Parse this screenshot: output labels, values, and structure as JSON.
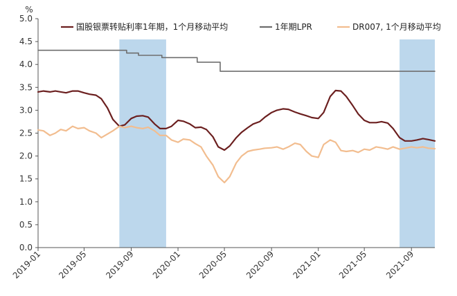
{
  "chart_data": {
    "type": "line",
    "unit": "%",
    "xlabel": "",
    "ylabel": "",
    "ylim": [
      0,
      5
    ],
    "y_ticks": [
      0.0,
      0.5,
      1.0,
      1.5,
      2.0,
      2.5,
      3.0,
      3.5,
      4.0,
      4.5,
      5.0
    ],
    "y_tick_labels": [
      "0.0",
      "0.5",
      "1.0",
      "1.5",
      "2.0",
      "2.5",
      "3.0",
      "3.5",
      "4.0",
      "4.5",
      "5.0"
    ],
    "x_range": [
      "2019-01-01",
      "2021-11-01"
    ],
    "x_tick_dates": [
      "2019-01-01",
      "2019-05-01",
      "2019-09-01",
      "2020-01-01",
      "2020-05-01",
      "2020-09-01",
      "2021-01-01",
      "2021-05-01",
      "2021-09-01"
    ],
    "x_tick_labels": [
      "2019-01",
      "2019-05",
      "2019-09",
      "2020-01",
      "2020-05",
      "2020-09",
      "2021-01",
      "2021-05",
      "2021-09"
    ],
    "grid": false,
    "legend_position": "top",
    "shaded_periods": [
      {
        "start": "2019-08-01",
        "end": "2019-12-01"
      },
      {
        "start": "2021-08-01",
        "end": "2021-11-01"
      }
    ],
    "shade_color": "#bcd7ec",
    "series": [
      {
        "name": "国股银票转贴利率1年期，1个月移动平均",
        "color": "#6b1f1f",
        "points": [
          [
            "2019-01-01",
            3.4
          ],
          [
            "2019-01-15",
            3.42
          ],
          [
            "2019-02-01",
            3.4
          ],
          [
            "2019-02-15",
            3.42
          ],
          [
            "2019-03-01",
            3.4
          ],
          [
            "2019-03-15",
            3.38
          ],
          [
            "2019-04-01",
            3.42
          ],
          [
            "2019-04-15",
            3.42
          ],
          [
            "2019-05-01",
            3.38
          ],
          [
            "2019-05-15",
            3.35
          ],
          [
            "2019-06-01",
            3.33
          ],
          [
            "2019-06-15",
            3.25
          ],
          [
            "2019-07-01",
            3.05
          ],
          [
            "2019-07-15",
            2.8
          ],
          [
            "2019-08-01",
            2.65
          ],
          [
            "2019-08-15",
            2.68
          ],
          [
            "2019-09-01",
            2.82
          ],
          [
            "2019-09-15",
            2.87
          ],
          [
            "2019-10-01",
            2.88
          ],
          [
            "2019-10-15",
            2.85
          ],
          [
            "2019-11-01",
            2.7
          ],
          [
            "2019-11-15",
            2.6
          ],
          [
            "2019-12-01",
            2.6
          ],
          [
            "2019-12-15",
            2.65
          ],
          [
            "2020-01-01",
            2.78
          ],
          [
            "2020-01-15",
            2.76
          ],
          [
            "2020-02-01",
            2.7
          ],
          [
            "2020-02-15",
            2.62
          ],
          [
            "2020-03-01",
            2.63
          ],
          [
            "2020-03-15",
            2.58
          ],
          [
            "2020-04-01",
            2.42
          ],
          [
            "2020-04-15",
            2.2
          ],
          [
            "2020-05-01",
            2.13
          ],
          [
            "2020-05-15",
            2.22
          ],
          [
            "2020-06-01",
            2.4
          ],
          [
            "2020-06-15",
            2.52
          ],
          [
            "2020-07-01",
            2.62
          ],
          [
            "2020-07-15",
            2.7
          ],
          [
            "2020-08-01",
            2.75
          ],
          [
            "2020-08-15",
            2.85
          ],
          [
            "2020-09-01",
            2.95
          ],
          [
            "2020-09-15",
            3.0
          ],
          [
            "2020-10-01",
            3.03
          ],
          [
            "2020-10-15",
            3.02
          ],
          [
            "2020-11-01",
            2.96
          ],
          [
            "2020-11-15",
            2.92
          ],
          [
            "2020-12-01",
            2.88
          ],
          [
            "2020-12-15",
            2.84
          ],
          [
            "2021-01-01",
            2.82
          ],
          [
            "2021-01-15",
            2.95
          ],
          [
            "2021-02-01",
            3.3
          ],
          [
            "2021-02-15",
            3.43
          ],
          [
            "2021-03-01",
            3.42
          ],
          [
            "2021-03-15",
            3.3
          ],
          [
            "2021-04-01",
            3.1
          ],
          [
            "2021-04-15",
            2.92
          ],
          [
            "2021-05-01",
            2.78
          ],
          [
            "2021-05-15",
            2.73
          ],
          [
            "2021-06-01",
            2.73
          ],
          [
            "2021-06-15",
            2.75
          ],
          [
            "2021-07-01",
            2.72
          ],
          [
            "2021-07-15",
            2.6
          ],
          [
            "2021-08-01",
            2.4
          ],
          [
            "2021-08-15",
            2.33
          ],
          [
            "2021-09-01",
            2.33
          ],
          [
            "2021-09-15",
            2.35
          ],
          [
            "2021-10-01",
            2.38
          ],
          [
            "2021-10-15",
            2.36
          ],
          [
            "2021-11-01",
            2.33
          ]
        ]
      },
      {
        "name": "1年期LPR",
        "color": "#6e6e6e",
        "step": true,
        "points": [
          [
            "2019-01-01",
            4.31
          ],
          [
            "2019-08-20",
            4.25
          ],
          [
            "2019-09-20",
            4.2
          ],
          [
            "2019-11-20",
            4.15
          ],
          [
            "2020-02-20",
            4.05
          ],
          [
            "2020-04-20",
            3.85
          ],
          [
            "2021-11-01",
            3.85
          ]
        ]
      },
      {
        "name": "DR007, 1个月移动平均",
        "color": "#f2bd8f",
        "points": [
          [
            "2019-01-01",
            2.57
          ],
          [
            "2019-01-15",
            2.55
          ],
          [
            "2019-02-01",
            2.45
          ],
          [
            "2019-02-15",
            2.5
          ],
          [
            "2019-03-01",
            2.58
          ],
          [
            "2019-03-15",
            2.55
          ],
          [
            "2019-04-01",
            2.65
          ],
          [
            "2019-04-15",
            2.6
          ],
          [
            "2019-05-01",
            2.62
          ],
          [
            "2019-05-15",
            2.55
          ],
          [
            "2019-06-01",
            2.5
          ],
          [
            "2019-06-15",
            2.4
          ],
          [
            "2019-07-01",
            2.48
          ],
          [
            "2019-07-15",
            2.55
          ],
          [
            "2019-08-01",
            2.65
          ],
          [
            "2019-08-15",
            2.62
          ],
          [
            "2019-09-01",
            2.65
          ],
          [
            "2019-09-15",
            2.62
          ],
          [
            "2019-10-01",
            2.6
          ],
          [
            "2019-10-15",
            2.63
          ],
          [
            "2019-11-01",
            2.55
          ],
          [
            "2019-11-15",
            2.45
          ],
          [
            "2019-12-01",
            2.45
          ],
          [
            "2019-12-15",
            2.35
          ],
          [
            "2020-01-01",
            2.3
          ],
          [
            "2020-01-15",
            2.37
          ],
          [
            "2020-02-01",
            2.35
          ],
          [
            "2020-02-15",
            2.27
          ],
          [
            "2020-03-01",
            2.2
          ],
          [
            "2020-03-15",
            2.0
          ],
          [
            "2020-04-01",
            1.8
          ],
          [
            "2020-04-15",
            1.55
          ],
          [
            "2020-05-01",
            1.42
          ],
          [
            "2020-05-15",
            1.55
          ],
          [
            "2020-06-01",
            1.85
          ],
          [
            "2020-06-15",
            2.0
          ],
          [
            "2020-07-01",
            2.1
          ],
          [
            "2020-07-15",
            2.13
          ],
          [
            "2020-08-01",
            2.15
          ],
          [
            "2020-08-15",
            2.17
          ],
          [
            "2020-09-01",
            2.18
          ],
          [
            "2020-09-15",
            2.2
          ],
          [
            "2020-10-01",
            2.15
          ],
          [
            "2020-10-15",
            2.2
          ],
          [
            "2020-11-01",
            2.28
          ],
          [
            "2020-11-15",
            2.25
          ],
          [
            "2020-12-01",
            2.1
          ],
          [
            "2020-12-15",
            2.0
          ],
          [
            "2021-01-01",
            1.97
          ],
          [
            "2021-01-15",
            2.25
          ],
          [
            "2021-02-01",
            2.35
          ],
          [
            "2021-02-15",
            2.3
          ],
          [
            "2021-03-01",
            2.12
          ],
          [
            "2021-03-15",
            2.1
          ],
          [
            "2021-04-01",
            2.12
          ],
          [
            "2021-04-15",
            2.08
          ],
          [
            "2021-05-01",
            2.15
          ],
          [
            "2021-05-15",
            2.13
          ],
          [
            "2021-06-01",
            2.2
          ],
          [
            "2021-06-15",
            2.18
          ],
          [
            "2021-07-01",
            2.15
          ],
          [
            "2021-07-15",
            2.2
          ],
          [
            "2021-08-01",
            2.15
          ],
          [
            "2021-08-15",
            2.17
          ],
          [
            "2021-09-01",
            2.2
          ],
          [
            "2021-09-15",
            2.18
          ],
          [
            "2021-10-01",
            2.2
          ],
          [
            "2021-10-15",
            2.17
          ],
          [
            "2021-11-01",
            2.16
          ]
        ]
      }
    ]
  }
}
